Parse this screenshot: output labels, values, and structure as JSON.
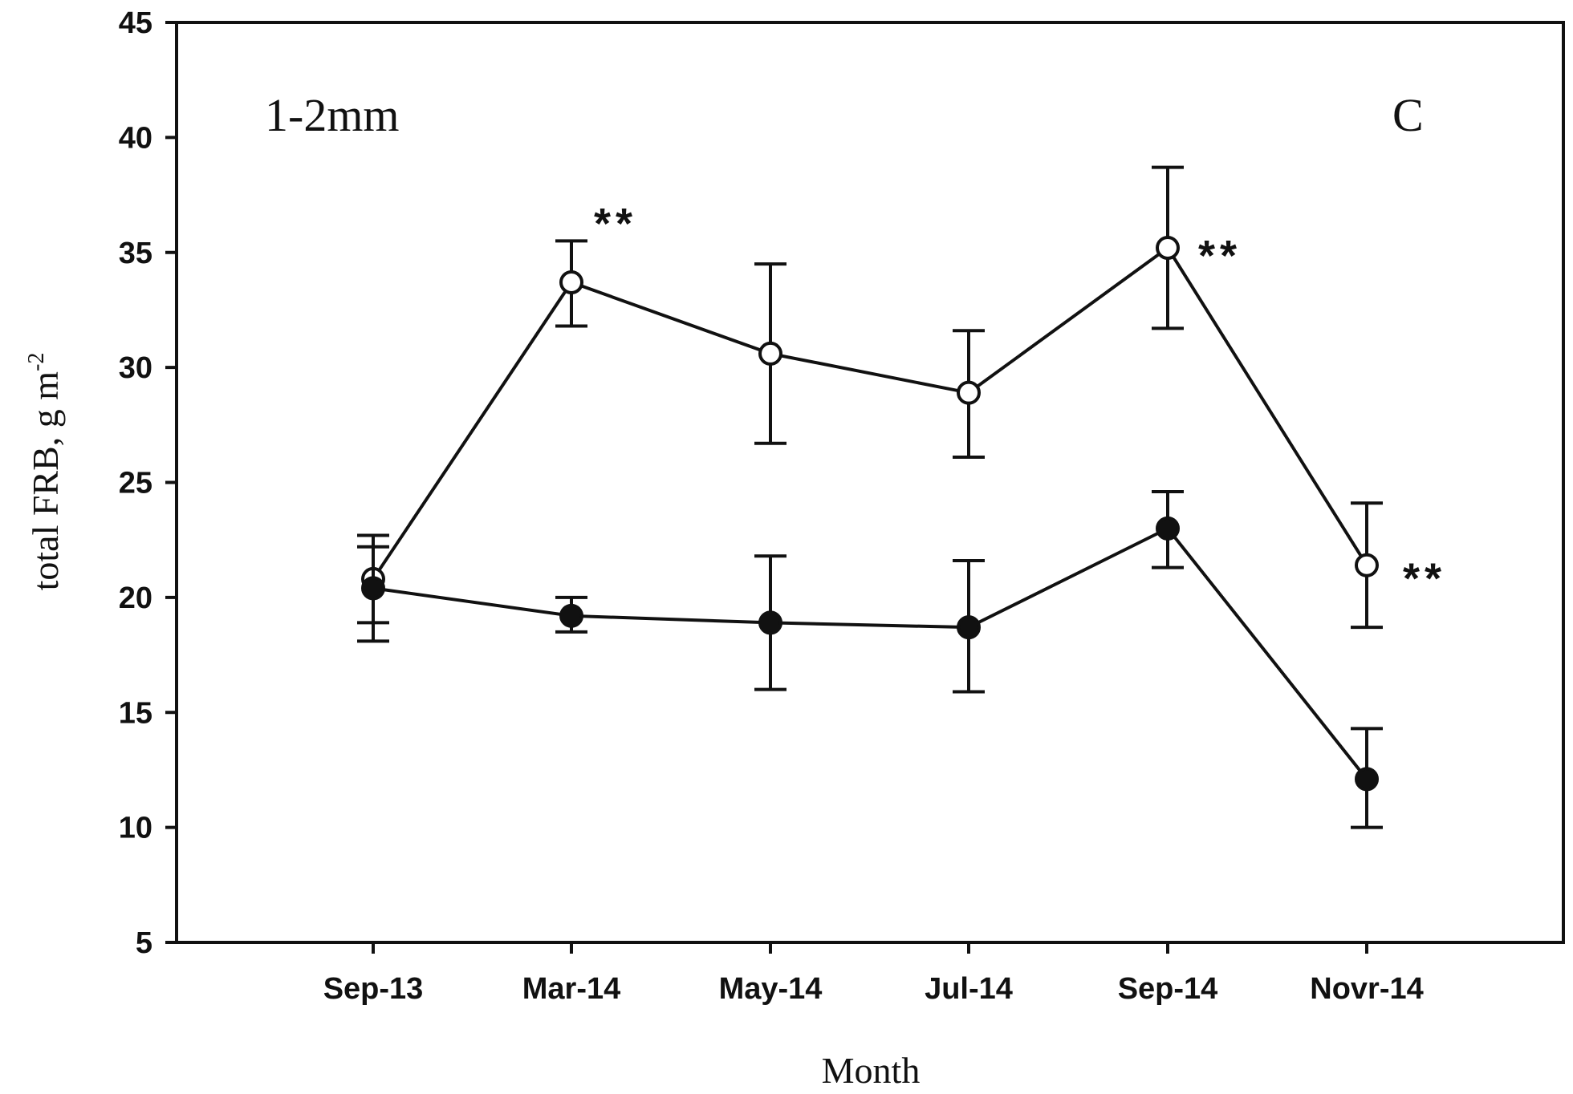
{
  "chart_data": {
    "type": "line",
    "categories": [
      "Sep-13",
      "Mar-14",
      "May-14",
      "Jul-14",
      "Sep-14",
      "Novr-14"
    ],
    "series": [
      {
        "marker": "open-circle",
        "values": [
          20.8,
          33.7,
          30.6,
          28.9,
          35.2,
          21.4
        ],
        "err_low": [
          18.9,
          31.8,
          26.7,
          26.1,
          31.7,
          18.7
        ],
        "err_high": [
          22.7,
          35.5,
          34.5,
          31.6,
          38.7,
          24.1
        ]
      },
      {
        "marker": "filled-circle",
        "values": [
          20.4,
          19.2,
          18.9,
          18.7,
          23.0,
          12.1
        ],
        "err_low": [
          18.1,
          18.5,
          16.0,
          15.9,
          21.3,
          10.0
        ],
        "err_high": [
          22.2,
          20.0,
          21.8,
          21.6,
          24.6,
          14.3
        ]
      }
    ],
    "xlabel": "Month",
    "ylabel": "total FRB, g m",
    "ylabel_superscript": "-2",
    "ylim": [
      5,
      45
    ],
    "yticks": [
      5,
      10,
      15,
      20,
      25,
      30,
      35,
      40,
      45
    ],
    "grid": false,
    "annotations": {
      "panel_size": "1-2mm",
      "panel_letter": "C",
      "significance": [
        {
          "category_index": 1,
          "series_index": 0,
          "text": "**"
        },
        {
          "category_index": 4,
          "series_index": 0,
          "text": "**"
        },
        {
          "category_index": 5,
          "series_index": 0,
          "text": "**"
        }
      ]
    }
  }
}
